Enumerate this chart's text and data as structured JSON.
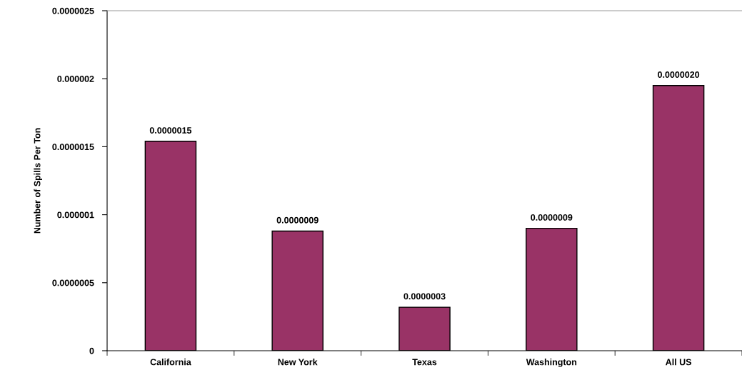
{
  "chart_data": {
    "type": "bar",
    "ylabel": "Number of Spills Per Ton",
    "categories": [
      "California",
      "New York",
      "Texas",
      "Washington",
      "All US"
    ],
    "values": [
      1.54e-06,
      8.8e-07,
      3.2e-07,
      9e-07,
      1.95e-06
    ],
    "value_labels": [
      "0.0000015",
      "0.0000009",
      "0.0000003",
      "0.0000009",
      "0.0000020"
    ],
    "color": "#993366",
    "ylim": [
      0,
      2.5e-06
    ],
    "yticks": [
      {
        "value": 0,
        "label": "0"
      },
      {
        "value": 5e-07,
        "label": "0.0000005"
      },
      {
        "value": 1e-06,
        "label": "0.000001"
      },
      {
        "value": 1.5e-06,
        "label": "0.0000015"
      },
      {
        "value": 2e-06,
        "label": "0.000002"
      },
      {
        "value": 2.5e-06,
        "label": "0.0000025"
      }
    ],
    "grid": false,
    "legend": false
  }
}
